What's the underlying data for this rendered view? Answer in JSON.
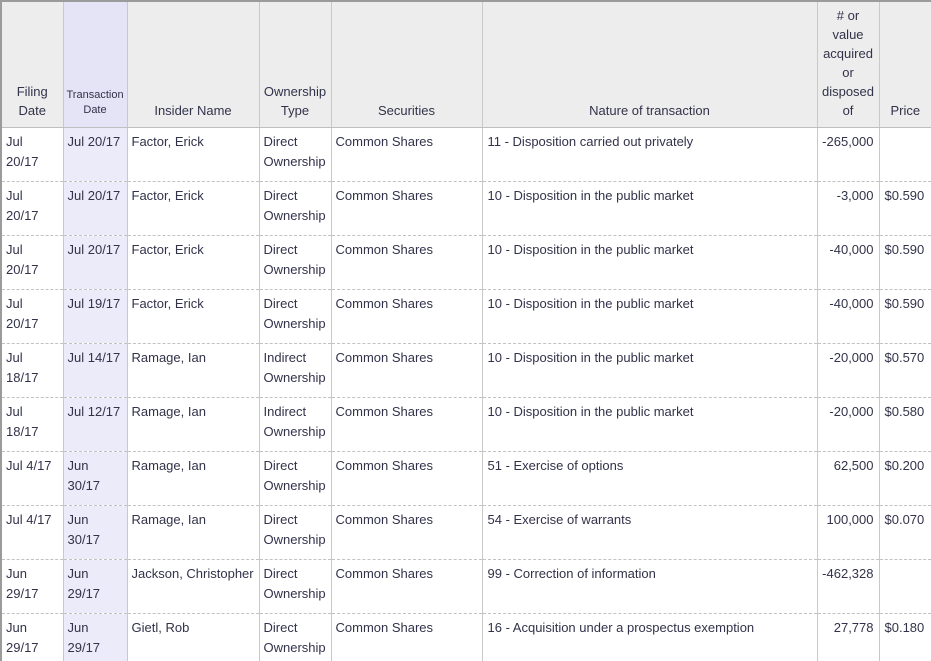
{
  "colors": {
    "text": "#32324a",
    "header_bg": "#ededed",
    "txn_header_bg": "#e4e4f6",
    "txn_cell_bg": "#ebebf9",
    "grid_border": "#c9c9c9",
    "row_border": "#c2c2c2",
    "outer_border": "#9b9b9b"
  },
  "table": {
    "columns": [
      {
        "key": "filing_date",
        "label": "Filing Date"
      },
      {
        "key": "transaction_date",
        "label": "Transaction Date"
      },
      {
        "key": "insider_name",
        "label": "Insider Name"
      },
      {
        "key": "ownership_type",
        "label": "Ownership Type"
      },
      {
        "key": "securities",
        "label": "Securities"
      },
      {
        "key": "nature",
        "label": "Nature of transaction"
      },
      {
        "key": "amount",
        "label": "# or value acquired or disposed of"
      },
      {
        "key": "price",
        "label": "Price"
      }
    ],
    "rows": [
      {
        "filing_date": "Jul 20/17",
        "transaction_date": "Jul 20/17",
        "insider_name": "Factor, Erick",
        "ownership_type": "Direct Ownership",
        "securities": "Common Shares",
        "nature": "11 - Disposition carried out privately",
        "amount": "-265,000",
        "price": ""
      },
      {
        "filing_date": "Jul 20/17",
        "transaction_date": "Jul 20/17",
        "insider_name": "Factor, Erick",
        "ownership_type": "Direct Ownership",
        "securities": "Common Shares",
        "nature": "10 - Disposition in the public market",
        "amount": "-3,000",
        "price": "$0.590"
      },
      {
        "filing_date": "Jul 20/17",
        "transaction_date": "Jul 20/17",
        "insider_name": "Factor, Erick",
        "ownership_type": "Direct Ownership",
        "securities": "Common Shares",
        "nature": "10 - Disposition in the public market",
        "amount": "-40,000",
        "price": "$0.590"
      },
      {
        "filing_date": "Jul 20/17",
        "transaction_date": "Jul 19/17",
        "insider_name": "Factor, Erick",
        "ownership_type": "Direct Ownership",
        "securities": "Common Shares",
        "nature": "10 - Disposition in the public market",
        "amount": "-40,000",
        "price": "$0.590"
      },
      {
        "filing_date": "Jul 18/17",
        "transaction_date": "Jul 14/17",
        "insider_name": "Ramage, Ian",
        "ownership_type": "Indirect Ownership",
        "securities": "Common Shares",
        "nature": "10 - Disposition in the public market",
        "amount": "-20,000",
        "price": "$0.570"
      },
      {
        "filing_date": "Jul 18/17",
        "transaction_date": "Jul 12/17",
        "insider_name": "Ramage, Ian",
        "ownership_type": "Indirect Ownership",
        "securities": "Common Shares",
        "nature": "10 - Disposition in the public market",
        "amount": "-20,000",
        "price": "$0.580"
      },
      {
        "filing_date": "Jul 4/17",
        "transaction_date": "Jun 30/17",
        "insider_name": "Ramage, Ian",
        "ownership_type": "Direct Ownership",
        "securities": "Common Shares",
        "nature": "51 - Exercise of options",
        "amount": "62,500",
        "price": "$0.200"
      },
      {
        "filing_date": "Jul 4/17",
        "transaction_date": "Jun 30/17",
        "insider_name": "Ramage, Ian",
        "ownership_type": "Direct Ownership",
        "securities": "Common Shares",
        "nature": "54 - Exercise of warrants",
        "amount": "100,000",
        "price": "$0.070"
      },
      {
        "filing_date": "Jun 29/17",
        "transaction_date": "Jun 29/17",
        "insider_name": "Jackson, Christopher",
        "ownership_type": "Direct Ownership",
        "securities": "Common Shares",
        "nature": "99 - Correction of information",
        "amount": "-462,328",
        "price": ""
      },
      {
        "filing_date": "Jun 29/17",
        "transaction_date": "Jun 29/17",
        "insider_name": "Gietl, Rob",
        "ownership_type": "Direct Ownership",
        "securities": "Common Shares",
        "nature": "16 - Acquisition under a prospectus exemption",
        "amount": "27,778",
        "price": "$0.180"
      }
    ]
  }
}
